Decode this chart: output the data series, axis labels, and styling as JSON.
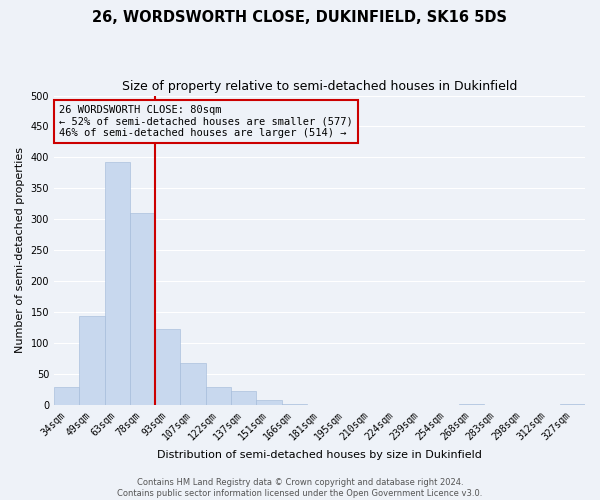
{
  "title": "26, WORDSWORTH CLOSE, DUKINFIELD, SK16 5DS",
  "subtitle": "Size of property relative to semi-detached houses in Dukinfield",
  "bar_labels": [
    "34sqm",
    "49sqm",
    "63sqm",
    "78sqm",
    "93sqm",
    "107sqm",
    "122sqm",
    "137sqm",
    "151sqm",
    "166sqm",
    "181sqm",
    "195sqm",
    "210sqm",
    "224sqm",
    "239sqm",
    "254sqm",
    "268sqm",
    "283sqm",
    "298sqm",
    "312sqm",
    "327sqm"
  ],
  "bar_values": [
    28,
    143,
    393,
    310,
    122,
    67,
    29,
    22,
    8,
    1,
    0,
    0,
    0,
    0,
    0,
    0,
    1,
    0,
    0,
    0,
    1
  ],
  "bar_color": "#c8d8ee",
  "bar_edge_color": "#a0b8d8",
  "ylim": [
    0,
    500
  ],
  "yticks": [
    0,
    50,
    100,
    150,
    200,
    250,
    300,
    350,
    400,
    450,
    500
  ],
  "ylabel": "Number of semi-detached properties",
  "xlabel": "Distribution of semi-detached houses by size in Dukinfield",
  "vline_index": 3,
  "vline_color": "#cc0000",
  "annotation_title": "26 WORDSWORTH CLOSE: 80sqm",
  "annotation_line1": "← 52% of semi-detached houses are smaller (577)",
  "annotation_line2": "46% of semi-detached houses are larger (514) →",
  "annotation_box_color": "#cc0000",
  "footer1": "Contains HM Land Registry data © Crown copyright and database right 2024.",
  "footer2": "Contains public sector information licensed under the Open Government Licence v3.0.",
  "background_color": "#eef2f8",
  "grid_color": "#ffffff",
  "title_fontsize": 10.5,
  "subtitle_fontsize": 9,
  "axis_label_fontsize": 8,
  "tick_fontsize": 7,
  "annotation_fontsize": 7.5,
  "footer_fontsize": 6
}
